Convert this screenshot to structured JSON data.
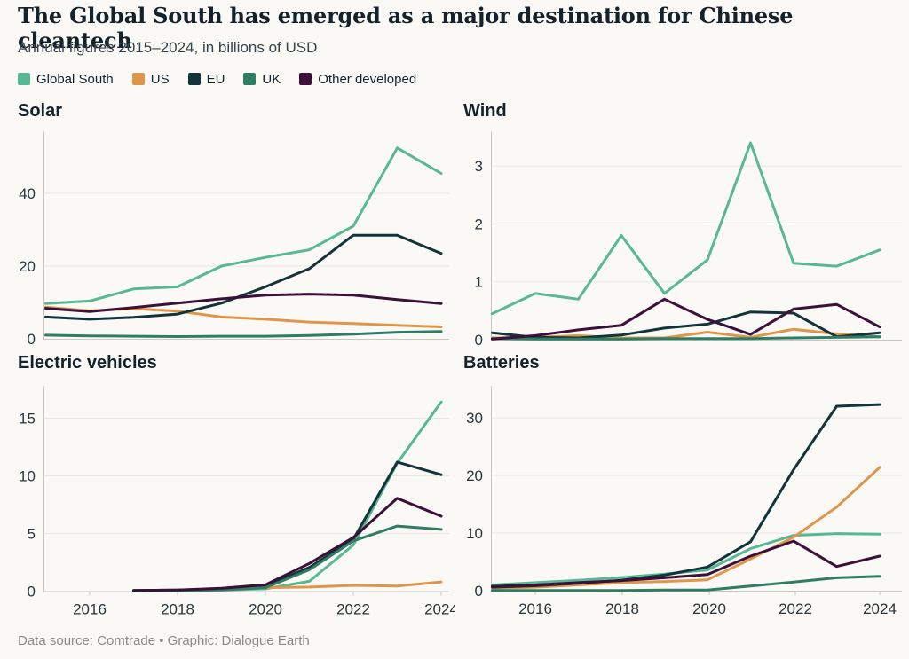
{
  "header": {
    "title": "The Global South has emerged as a major destination for Chinese cleantech",
    "subtitle": "Annual figures 2015–2024, in billions of USD"
  },
  "colors": {
    "global_south": "#58b894",
    "us": "#e0964a",
    "eu": "#14343c",
    "uk": "#2e7d64",
    "other_developed": "#3c1039",
    "text": "#13222b",
    "axis_text": "#26363e",
    "grid": "#e9e7e2",
    "axis_line": "#c9c7c2",
    "background": "#faf9f6",
    "footer_text": "#8a8a88"
  },
  "legend": [
    {
      "label": "Global South",
      "color_key": "global_south"
    },
    {
      "label": "US",
      "color_key": "us"
    },
    {
      "label": "EU",
      "color_key": "eu"
    },
    {
      "label": "UK",
      "color_key": "uk"
    },
    {
      "label": "Other developed",
      "color_key": "other_developed"
    }
  ],
  "footer": {
    "text": "Data source: Comtrade • Graphic: Dialogue Earth"
  },
  "chart_data": [
    {
      "type": "line",
      "title": "Solar",
      "x": [
        2015,
        2016,
        2017,
        2018,
        2019,
        2020,
        2021,
        2022,
        2023,
        2024
      ],
      "y_ticks": [
        0,
        20,
        40
      ],
      "ylim": [
        0,
        57
      ],
      "x_tick_labels": [],
      "series": [
        {
          "name": "Global South",
          "color_key": "global_south",
          "values": [
            9.7,
            10.4,
            13.7,
            14.3,
            20.0,
            22.4,
            24.5,
            31.0,
            52.5,
            45.5
          ]
        },
        {
          "name": "US",
          "color_key": "us",
          "values": [
            8.7,
            7.7,
            8.3,
            7.6,
            6.0,
            5.4,
            4.6,
            4.2,
            3.7,
            3.3
          ]
        },
        {
          "name": "EU",
          "color_key": "eu",
          "values": [
            6.0,
            5.4,
            5.9,
            6.8,
            9.8,
            14.3,
            19.3,
            28.5,
            28.5,
            23.5
          ]
        },
        {
          "name": "UK",
          "color_key": "uk",
          "values": [
            1.0,
            0.8,
            0.7,
            0.6,
            0.7,
            0.7,
            0.9,
            1.3,
            1.8,
            2.0
          ]
        },
        {
          "name": "Other developed",
          "color_key": "other_developed",
          "values": [
            8.4,
            7.5,
            8.6,
            9.8,
            11.0,
            12.0,
            12.3,
            12.0,
            10.8,
            9.7
          ]
        }
      ]
    },
    {
      "type": "line",
      "title": "Wind",
      "x": [
        2015,
        2016,
        2017,
        2018,
        2019,
        2020,
        2021,
        2022,
        2023,
        2024
      ],
      "y_ticks": [
        0,
        1,
        2,
        3
      ],
      "ylim": [
        0,
        3.55
      ],
      "x_tick_labels": [],
      "series": [
        {
          "name": "Global South",
          "color_key": "global_south",
          "values": [
            0.45,
            0.8,
            0.7,
            1.8,
            0.8,
            1.38,
            3.4,
            1.32,
            1.27,
            1.55
          ]
        },
        {
          "name": "US",
          "color_key": "us",
          "values": [
            0.03,
            0.04,
            0.07,
            0.03,
            0.03,
            0.13,
            0.04,
            0.18,
            0.1,
            0.05
          ]
        },
        {
          "name": "EU",
          "color_key": "eu",
          "values": [
            0.12,
            0.04,
            0.03,
            0.08,
            0.2,
            0.27,
            0.48,
            0.46,
            0.05,
            0.12
          ]
        },
        {
          "name": "UK",
          "color_key": "uk",
          "values": [
            0.02,
            0.01,
            0.01,
            0.01,
            0.02,
            0.02,
            0.02,
            0.03,
            0.04,
            0.05
          ]
        },
        {
          "name": "Other developed",
          "color_key": "other_developed",
          "values": [
            0.01,
            0.07,
            0.17,
            0.25,
            0.7,
            0.35,
            0.09,
            0.53,
            0.61,
            0.22
          ]
        }
      ]
    },
    {
      "type": "line",
      "title": "Electric vehicles",
      "x": [
        2015,
        2016,
        2017,
        2018,
        2019,
        2020,
        2021,
        2022,
        2023,
        2024
      ],
      "y_ticks": [
        0,
        5,
        10,
        15
      ],
      "ylim": [
        0,
        16.8
      ],
      "x_tick_labels": [
        "2016",
        "2018",
        "2020",
        "2022",
        "2024"
      ],
      "series": [
        {
          "name": "Global South",
          "color_key": "global_south",
          "values": [
            null,
            null,
            0.05,
            0.05,
            0.1,
            0.2,
            0.85,
            4.0,
            11.1,
            16.4
          ]
        },
        {
          "name": "US",
          "color_key": "us",
          "values": [
            null,
            null,
            0.05,
            0.1,
            0.15,
            0.3,
            0.35,
            0.5,
            0.45,
            0.8
          ]
        },
        {
          "name": "EU",
          "color_key": "eu",
          "values": [
            null,
            null,
            0.05,
            0.1,
            0.2,
            0.45,
            2.05,
            4.5,
            11.2,
            10.1
          ]
        },
        {
          "name": "UK",
          "color_key": "uk",
          "values": [
            null,
            null,
            0.02,
            0.05,
            0.1,
            0.3,
            1.85,
            4.35,
            5.65,
            5.35
          ]
        },
        {
          "name": "Other developed",
          "color_key": "other_developed",
          "values": [
            null,
            null,
            0.05,
            0.1,
            0.25,
            0.55,
            2.4,
            4.65,
            8.05,
            6.5
          ]
        }
      ]
    },
    {
      "type": "line",
      "title": "Batteries",
      "x": [
        2015,
        2016,
        2017,
        2018,
        2019,
        2020,
        2021,
        2022,
        2023,
        2024
      ],
      "y_ticks": [
        0,
        10,
        20,
        30
      ],
      "ylim": [
        0,
        33.5
      ],
      "x_tick_labels": [
        "2016",
        "2018",
        "2020",
        "2022",
        "2024"
      ],
      "series": [
        {
          "name": "Global South",
          "color_key": "global_south",
          "values": [
            1.0,
            1.4,
            1.8,
            2.3,
            2.9,
            3.6,
            7.3,
            9.6,
            9.9,
            9.8
          ]
        },
        {
          "name": "US",
          "color_key": "us",
          "values": [
            0.45,
            0.6,
            1.0,
            1.4,
            1.6,
            1.9,
            5.5,
            9.3,
            14.5,
            21.4
          ]
        },
        {
          "name": "EU",
          "color_key": "eu",
          "values": [
            0.6,
            0.85,
            1.3,
            1.8,
            2.7,
            4.1,
            8.5,
            21.0,
            32.0,
            32.3
          ]
        },
        {
          "name": "UK",
          "color_key": "uk",
          "values": [
            0.05,
            0.05,
            0.05,
            0.05,
            0.1,
            0.1,
            0.8,
            1.5,
            2.25,
            2.5
          ]
        },
        {
          "name": "Other developed",
          "color_key": "other_developed",
          "values": [
            0.75,
            1.0,
            1.4,
            1.75,
            2.25,
            2.8,
            6.0,
            8.6,
            4.2,
            6.0
          ]
        }
      ]
    }
  ]
}
